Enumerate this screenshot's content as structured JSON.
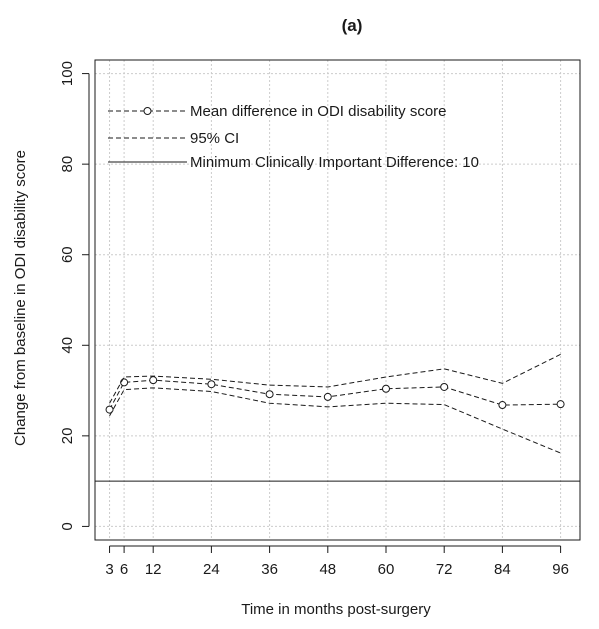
{
  "chart_data": {
    "type": "line",
    "title": "(a)",
    "xlabel": "Time in months post-surgery",
    "ylabel": "Change from baseline in ODI disability score",
    "x_ticks": [
      3,
      6,
      12,
      24,
      36,
      48,
      60,
      72,
      84,
      96
    ],
    "y_ticks": [
      0,
      20,
      40,
      60,
      80,
      100
    ],
    "xlim": [
      0,
      100
    ],
    "ylim": [
      -3,
      103
    ],
    "grid": true,
    "legend_position": "top-left",
    "x": [
      3,
      6,
      12,
      24,
      36,
      48,
      60,
      72,
      84,
      96
    ],
    "series": [
      {
        "name": "Mean difference in ODI disability score",
        "style": "dashed-circles",
        "values": [
          25.8,
          31.8,
          32.3,
          31.4,
          29.2,
          28.6,
          30.4,
          30.8,
          26.8,
          27.0
        ]
      },
      {
        "name": "95% CI",
        "style": "dashed",
        "values": [
          27.2,
          33.0,
          33.2,
          32.5,
          31.2,
          30.8,
          33.0,
          34.8,
          31.6,
          38.0
        ]
      },
      {
        "name": "",
        "style": "dashed",
        "values": [
          24.4,
          30.2,
          30.6,
          29.8,
          27.2,
          26.4,
          27.2,
          26.9,
          21.5,
          16.2
        ]
      }
    ],
    "reference_line": {
      "name": "Minimum Clinically Important Difference: 10",
      "value": 10,
      "style": "solid"
    },
    "colors": {
      "line": "#1a1a1a",
      "grid": "#cccccc",
      "axis": "#1a1a1a"
    }
  }
}
